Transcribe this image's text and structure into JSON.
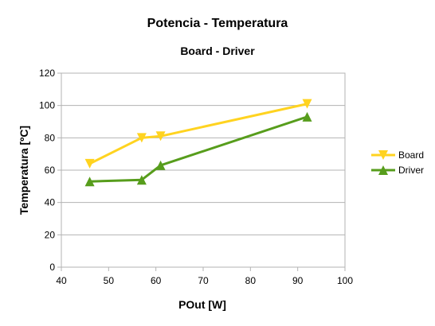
{
  "chart_data": {
    "type": "line",
    "title": "Potencia - Temperatura",
    "subtitle": "Board - Driver",
    "xlabel": "POut [W]",
    "ylabel": "Temperatura [ºC]",
    "xlim": [
      40,
      100
    ],
    "ylim": [
      0,
      120
    ],
    "xticks": [
      40,
      50,
      60,
      70,
      80,
      90,
      100
    ],
    "yticks": [
      0,
      20,
      40,
      60,
      80,
      100,
      120
    ],
    "grid": "horizontal",
    "legend": "right",
    "series": [
      {
        "name": "Board",
        "color": "#ffd320",
        "marker": "triangle-down",
        "points": [
          [
            46,
            64
          ],
          [
            57,
            80
          ],
          [
            61,
            81
          ],
          [
            92,
            101
          ]
        ]
      },
      {
        "name": "Driver",
        "color": "#579d1c",
        "marker": "triangle-up",
        "points": [
          [
            46,
            53
          ],
          [
            57,
            54
          ],
          [
            61,
            63
          ],
          [
            92,
            93
          ]
        ]
      }
    ]
  }
}
